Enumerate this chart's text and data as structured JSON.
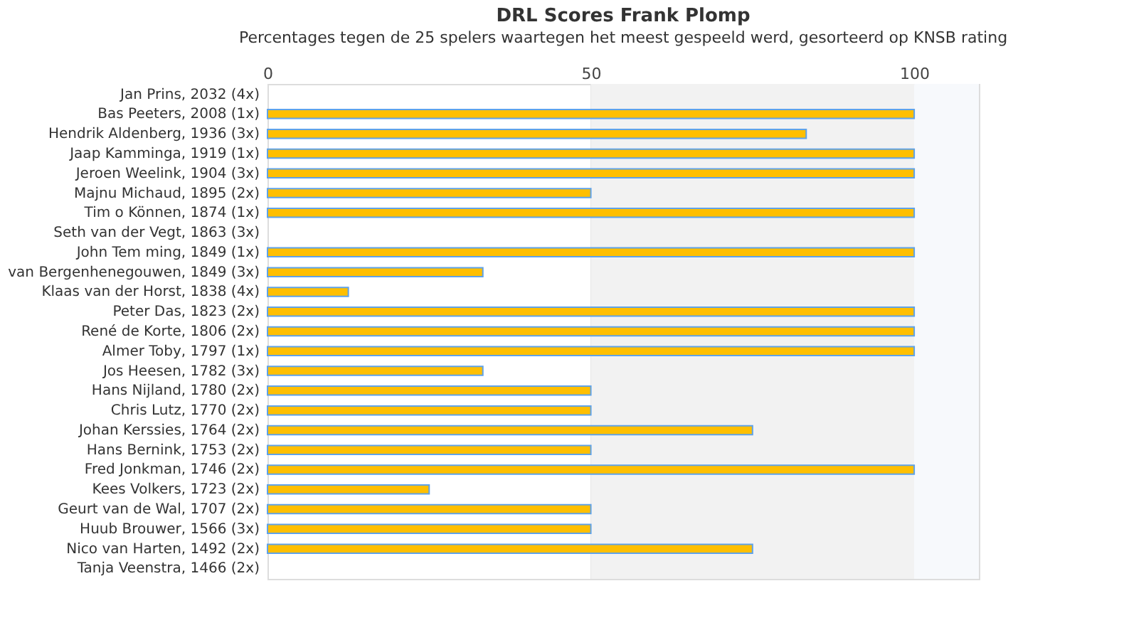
{
  "chart_data": {
    "type": "bar",
    "orientation": "horizontal",
    "title": "DRL Scores Frank Plomp",
    "subtitle": "Percentages tegen de 25 spelers waartegen het meest gespeeld werd, gesorteerd op KNSB rating",
    "categories": [
      "Jan Prins, 2032 (4x)",
      "Bas Peeters, 2008 (1x)",
      "Hendrik Aldenberg, 1936 (3x)",
      "Jaap Kamminga, 1919 (1x)",
      "Jeroen Weelink, 1904 (3x)",
      "Majnu Michaud, 1895 (2x)",
      "Tim o Können, 1874 (1x)",
      "Seth van der Vegt, 1863 (3x)",
      "John Tem ming, 1849 (1x)",
      "van Bergenhenegouwen, 1849 (3x)",
      "Klaas van der Horst, 1838 (4x)",
      "Peter Das, 1823 (2x)",
      "René de Korte, 1806 (2x)",
      "Almer Toby, 1797 (1x)",
      "Jos Heesen, 1782 (3x)",
      "Hans Nijland, 1780 (2x)",
      "Chris Lutz, 1770 (2x)",
      "Johan Kerssies, 1764 (2x)",
      "Hans Bernink, 1753 (2x)",
      "Fred Jonkman, 1746 (2x)",
      "Kees Volkers, 1723 (2x)",
      "Geurt van de Wal, 1707 (2x)",
      "Huub Brouwer, 1566 (3x)",
      "Nico van Harten, 1492 (2x)",
      "Tanja Veenstra, 1466 (2x)"
    ],
    "values": [
      0,
      100,
      83.3,
      100,
      100,
      50,
      100,
      0,
      100,
      33.3,
      12.5,
      100,
      100,
      100,
      33.3,
      50,
      50,
      75,
      50,
      100,
      25,
      50,
      50,
      75,
      0
    ],
    "color": "#ffbf00",
    "xlim": [
      0,
      110
    ],
    "xticks": [
      0,
      50,
      100
    ],
    "grid": "x",
    "bands": [
      {
        "axis": "x",
        "from": 50,
        "to": 100,
        "color": "#f2f2f2"
      },
      {
        "axis": "x",
        "from": 100,
        "to": 110,
        "color": "#f7f9fc"
      }
    ]
  }
}
